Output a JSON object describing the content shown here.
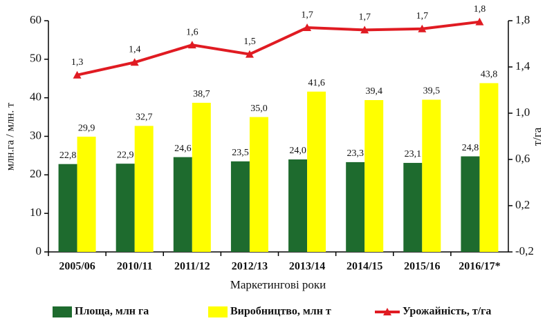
{
  "chart_data": {
    "type": "bar_line",
    "categories": [
      "2005/06",
      "2010/11",
      "2011/12",
      "2012/13",
      "2013/14",
      "2014/15",
      "2015/16",
      "2016/17*"
    ],
    "series": [
      {
        "name": "Площа, млн га",
        "color": "#1e6b2e",
        "type": "bar",
        "values": [
          22.8,
          22.9,
          24.6,
          23.5,
          24.0,
          23.3,
          23.1,
          24.8
        ],
        "value_labels": [
          "22,8",
          "22,9",
          "24,6",
          "23,5",
          "24,0",
          "23,3",
          "23,1",
          "24,8"
        ]
      },
      {
        "name": "Виробництво, млн т",
        "color": "#ffff00",
        "type": "bar",
        "values": [
          29.9,
          32.7,
          38.7,
          35.0,
          41.6,
          39.4,
          39.5,
          43.8
        ],
        "value_labels": [
          "29,9",
          "32,7",
          "38,7",
          "35,0",
          "41,6",
          "39,4",
          "39,5",
          "43,8"
        ]
      },
      {
        "name": "Урожайність, т/га",
        "color": "#e01b22",
        "type": "line",
        "axis": "y2",
        "values": [
          1.33,
          1.44,
          1.59,
          1.51,
          1.74,
          1.72,
          1.73,
          1.79
        ],
        "value_labels": [
          "1,3",
          "1,4",
          "1,6",
          "1,5",
          "1,7",
          "1,7",
          "1,7",
          "1,8"
        ]
      }
    ],
    "xlabel": "Маркетингові роки",
    "ylabel": "млн.га / млн. т",
    "y2label": "т/га",
    "ylim": [
      0,
      60
    ],
    "yticks": [
      0,
      10,
      20,
      30,
      40,
      50,
      60
    ],
    "y2lim": [
      -0.2,
      1.8
    ],
    "y2ticks": [
      {
        "value": -0.2,
        "label": "-0,2"
      },
      {
        "value": 0.2,
        "label": "0,2"
      },
      {
        "value": 0.6,
        "label": "0,6"
      },
      {
        "value": 1.0,
        "label": "1,0"
      },
      {
        "value": 1.4,
        "label": "1,4"
      },
      {
        "value": 1.8,
        "label": "1,8"
      }
    ],
    "legend": "bottom"
  }
}
